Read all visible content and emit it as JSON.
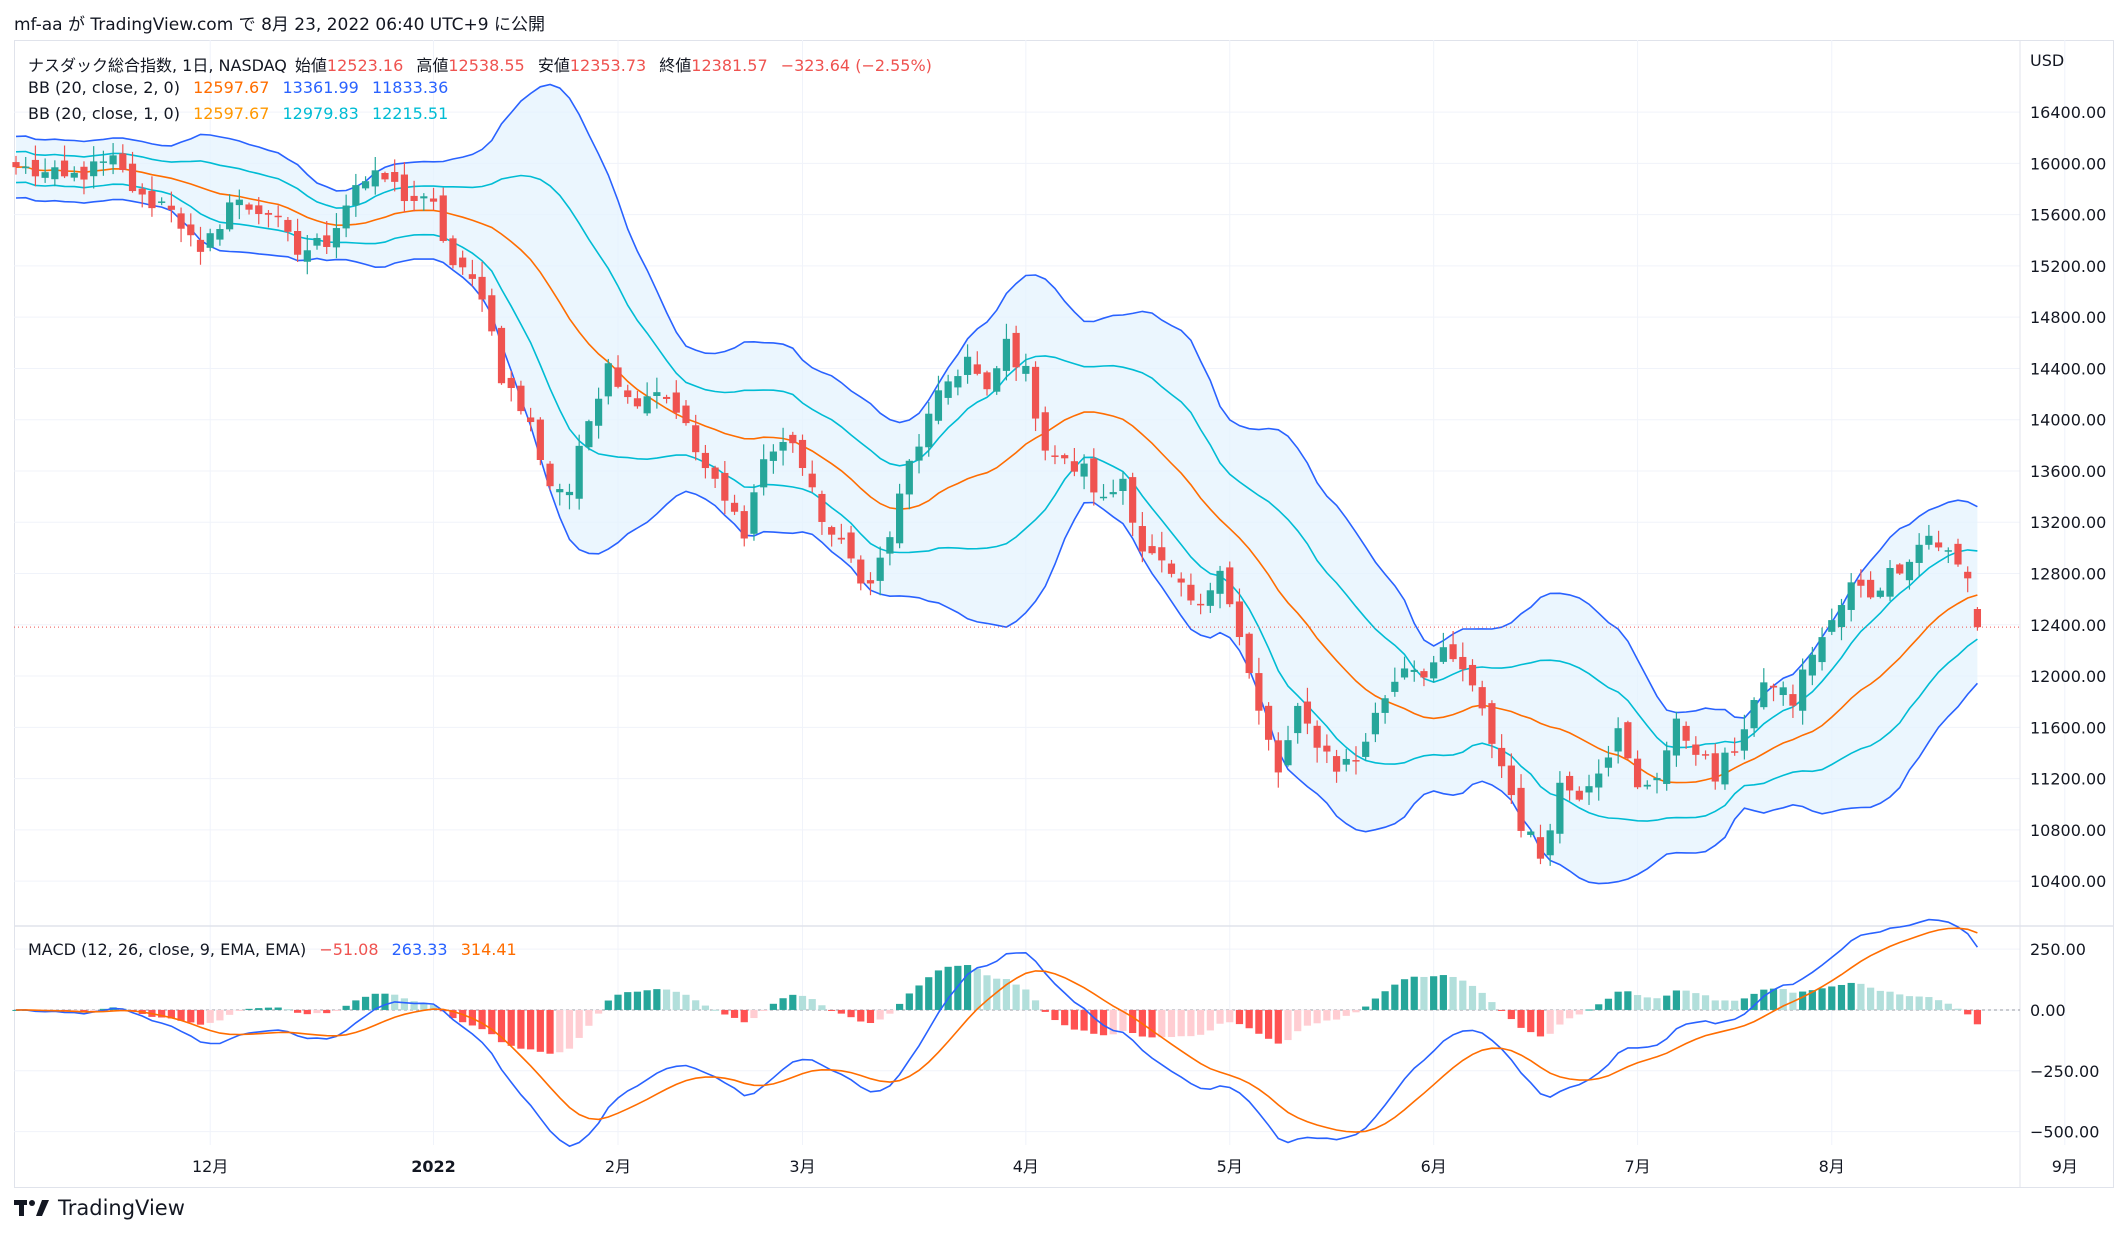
{
  "header": {
    "text": "mf-aa が TradingView.com で 8月 23, 2022 06:40 UTC+9 に公開"
  },
  "footer": {
    "brand": "TradingView"
  },
  "colors": {
    "up": "#26a69a",
    "down": "#ef5350",
    "basis": "#ff6d00",
    "bb2": "#2962ff",
    "bb1": "#00bcd4",
    "fill": "#e3f2fd",
    "macd": "#2962ff",
    "signal": "#ff6d00",
    "hist_up_strong": "#26a69a",
    "hist_up_weak": "#b2dfdb",
    "hist_dn_strong": "#ff5252",
    "hist_dn_weak": "#ffcdd2"
  },
  "legend": {
    "symbol": "ナスダック総合指数, 1日, NASDAQ",
    "open_label": "始値",
    "open": "12523.16",
    "high_label": "高値",
    "high": "12538.55",
    "low_label": "安値",
    "low": "12353.73",
    "close_label": "終値",
    "close": "12381.57",
    "change": "−323.64 (−2.55%)",
    "bb2_label": "BB (20, close, 2, 0)",
    "bb2_basis": "12597.67",
    "bb2_upper": "13361.99",
    "bb2_lower": "11833.36",
    "bb1_label": "BB (20, close, 1, 0)",
    "bb1_basis": "12597.67",
    "bb1_upper": "12979.83",
    "bb1_lower": "12215.51",
    "macd_label": "MACD (12, 26, close, 9, EMA, EMA)",
    "macd_hist": "−51.08",
    "macd_line": "263.33",
    "macd_signal": "314.41"
  },
  "chart_data": {
    "type": "candlestick",
    "currency": "USD",
    "price_ticks": [
      10400,
      10800,
      11200,
      11600,
      12000,
      12400,
      12800,
      13200,
      13600,
      14000,
      14400,
      14800,
      15200,
      15600,
      16000,
      16400
    ],
    "price_tick_labels": [
      "10400.00",
      "10800.00",
      "11200.00",
      "11600.00",
      "12000.00",
      "12400.00",
      "12800.00",
      "13200.00",
      "13600.00",
      "14000.00",
      "14400.00",
      "14800.00",
      "15200.00",
      "15600.00",
      "16000.00",
      "16400.00"
    ],
    "price_range": [
      10050,
      16900
    ],
    "last_price": 12381.57,
    "macd_ticks": [
      250,
      0,
      -250,
      -500
    ],
    "macd_tick_labels": [
      "250.00",
      "0.00",
      "−250.00",
      "−500.00"
    ],
    "macd_range": [
      -555,
      345
    ],
    "time_labels": [
      {
        "label": "12月",
        "bar": 20
      },
      {
        "label": "2022",
        "bar": 43
      },
      {
        "label": "2月",
        "bar": 62
      },
      {
        "label": "3月",
        "bar": 81
      },
      {
        "label": "4月",
        "bar": 104
      },
      {
        "label": "5月",
        "bar": 125
      },
      {
        "label": "6月",
        "bar": 146
      },
      {
        "label": "7月",
        "bar": 167
      },
      {
        "label": "8月",
        "bar": 187
      },
      {
        "label": "9月",
        "bar": 211
      }
    ],
    "close_anchors": [
      [
        0,
        15970
      ],
      [
        5,
        15870
      ],
      [
        10,
        16010
      ],
      [
        13,
        15710
      ],
      [
        16,
        15680
      ],
      [
        19,
        15250
      ],
      [
        22,
        15700
      ],
      [
        26,
        15620
      ],
      [
        29,
        15300
      ],
      [
        32,
        15400
      ],
      [
        35,
        15850
      ],
      [
        38,
        15880
      ],
      [
        40,
        15750
      ],
      [
        43,
        15650
      ],
      [
        45,
        15200
      ],
      [
        48,
        15000
      ],
      [
        50,
        14350
      ],
      [
        53,
        13950
      ],
      [
        55,
        13500
      ],
      [
        57,
        13450
      ],
      [
        59,
        14000
      ],
      [
        61,
        14480
      ],
      [
        63,
        14150
      ],
      [
        66,
        14250
      ],
      [
        68,
        14100
      ],
      [
        70,
        13750
      ],
      [
        73,
        13350
      ],
      [
        75,
        13150
      ],
      [
        77,
        13700
      ],
      [
        80,
        13850
      ],
      [
        82,
        13400
      ],
      [
        84,
        13100
      ],
      [
        86,
        12900
      ],
      [
        88,
        12700
      ],
      [
        90,
        13100
      ],
      [
        92,
        13650
      ],
      [
        94,
        14000
      ],
      [
        96,
        14300
      ],
      [
        98,
        14480
      ],
      [
        100,
        14180
      ],
      [
        102,
        14600
      ],
      [
        104,
        14350
      ],
      [
        106,
        13800
      ],
      [
        108,
        13650
      ],
      [
        110,
        13600
      ],
      [
        112,
        13350
      ],
      [
        114,
        13550
      ],
      [
        116,
        13000
      ],
      [
        118,
        12850
      ],
      [
        120,
        12650
      ],
      [
        122,
        12500
      ],
      [
        124,
        12900
      ],
      [
        126,
        12300
      ],
      [
        128,
        11700
      ],
      [
        130,
        11250
      ],
      [
        132,
        11700
      ],
      [
        134,
        11500
      ],
      [
        136,
        11300
      ],
      [
        138,
        11350
      ],
      [
        141,
        11850
      ],
      [
        143,
        12100
      ],
      [
        145,
        12050
      ],
      [
        147,
        12150
      ],
      [
        149,
        12050
      ],
      [
        151,
        11700
      ],
      [
        153,
        11300
      ],
      [
        155,
        10850
      ],
      [
        157,
        10600
      ],
      [
        159,
        11150
      ],
      [
        161,
        11100
      ],
      [
        163,
        11300
      ],
      [
        165,
        11550
      ],
      [
        167,
        11100
      ],
      [
        169,
        11250
      ],
      [
        171,
        11600
      ],
      [
        173,
        11450
      ],
      [
        175,
        11200
      ],
      [
        177,
        11450
      ],
      [
        179,
        11800
      ],
      [
        181,
        11950
      ],
      [
        183,
        11800
      ],
      [
        185,
        12200
      ],
      [
        187,
        12400
      ],
      [
        189,
        12700
      ],
      [
        191,
        12650
      ],
      [
        193,
        12800
      ],
      [
        195,
        12950
      ],
      [
        197,
        13100
      ],
      [
        199,
        12950
      ],
      [
        201,
        12750
      ],
      [
        202,
        12381.57
      ]
    ]
  }
}
